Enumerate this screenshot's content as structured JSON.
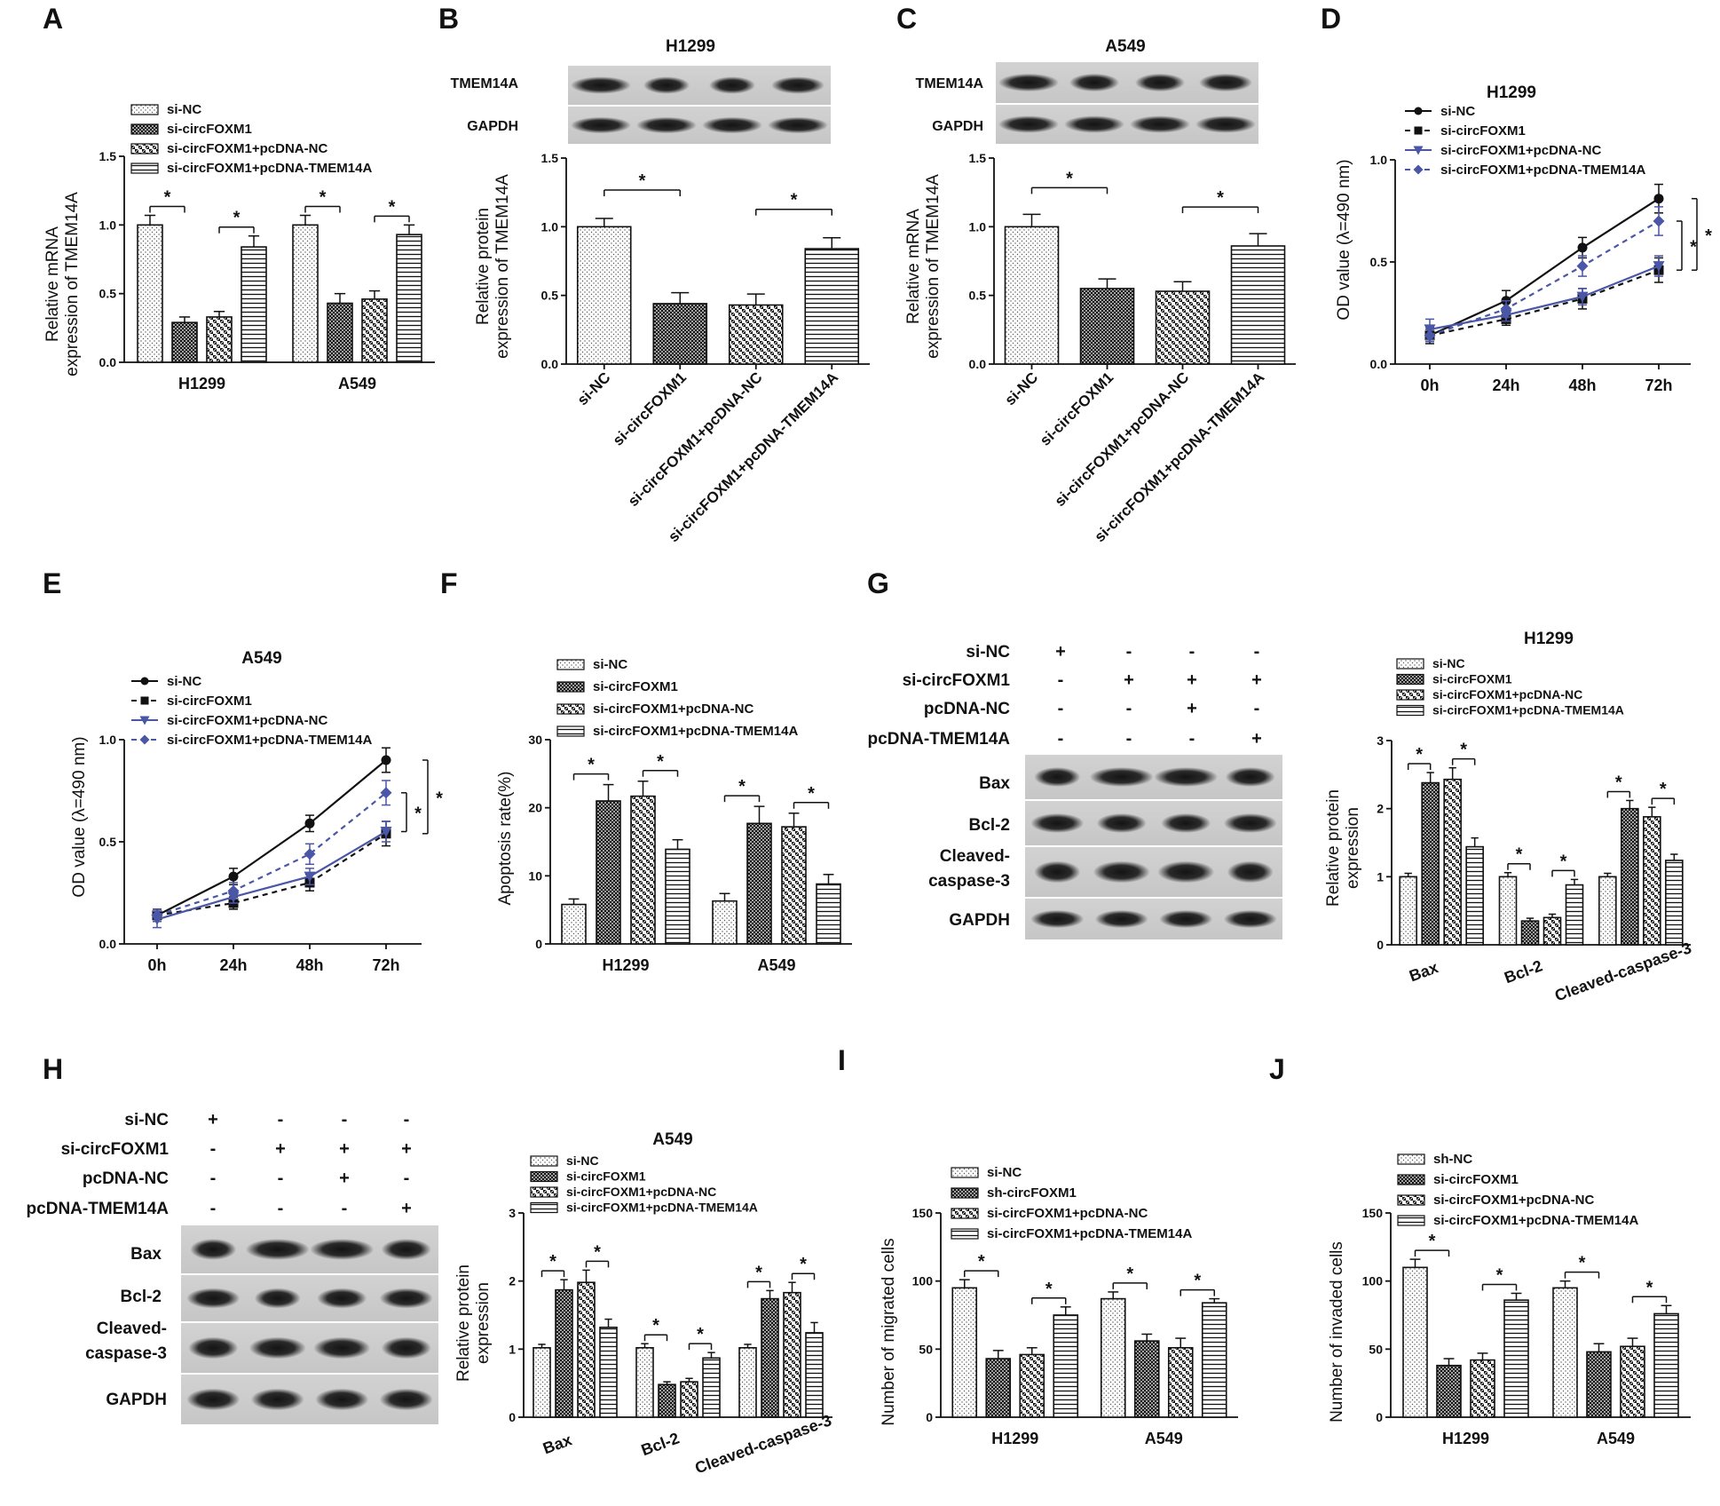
{
  "panels": {
    "A": {
      "letter": "A",
      "ylabel": [
        "Relative mRNA",
        "expression of TMEM14A"
      ],
      "legend": [
        "si-NC",
        "si-circFOXM1",
        "si-circFOXM1+pcDNA-NC",
        "si-circFOXM1+pcDNA-TMEM14A"
      ],
      "yticks": [
        "0.0",
        "0.5",
        "1.0",
        "1.5"
      ]
    },
    "B": {
      "letter": "B",
      "title": "H1299",
      "blot_labels": [
        "TMEM14A",
        "GAPDH"
      ],
      "ylabel": [
        "Relative protein",
        "expression of TMEM14A"
      ],
      "yticks": [
        "0.0",
        "0.5",
        "1.0",
        "1.5"
      ]
    },
    "C": {
      "letter": "C",
      "title": "A549",
      "blot_labels": [
        "TMEM14A",
        "GAPDH"
      ],
      "ylabel": [
        "Relative mRNA",
        "expression of TMEM14A"
      ],
      "yticks": [
        "0.0",
        "0.5",
        "1.0",
        "1.5"
      ]
    },
    "D": {
      "letter": "D",
      "title": "H1299",
      "ylabel": "OD value (λ=490 nm)",
      "legend": [
        "si-NC",
        "si-circFOXM1",
        "si-circFOXM1+pcDNA-NC",
        "si-circFOXM1+pcDNA-TMEM14A"
      ],
      "yticks": [
        "0.0",
        "0.5",
        "1.0"
      ]
    },
    "E": {
      "letter": "E",
      "title": "A549",
      "ylabel": "OD value (λ=490 nm)",
      "legend": [
        "si-NC",
        "si-circFOXM1",
        "si-circFOXM1+pcDNA-NC",
        "si-circFOXM1+pcDNA-TMEM14A"
      ],
      "yticks": [
        "0.0",
        "0.5",
        "1.0"
      ]
    },
    "F": {
      "letter": "F",
      "ylabel": "Apoptosis rate(%)",
      "legend": [
        "si-NC",
        "si-circFOXM1",
        "si-circFOXM1+pcDNA-NC",
        "si-circFOXM1+pcDNA-TMEM14A"
      ],
      "yticks": [
        "0",
        "10",
        "20",
        "30"
      ]
    },
    "G": {
      "letter": "G",
      "title": "H1299",
      "conditions": [
        "si-NC",
        "si-circFOXM1",
        "pcDNA-NC",
        "pcDNA-TMEM14A"
      ],
      "signs": [
        [
          "+",
          "-",
          "-",
          "-"
        ],
        [
          "-",
          "+",
          "+",
          "+"
        ],
        [
          "-",
          "-",
          "+",
          "-"
        ],
        [
          "-",
          "-",
          "-",
          "+"
        ]
      ],
      "blot_labels": [
        "Bax",
        "Bcl-2",
        "Cleaved-",
        "caspase-3",
        "GAPDH"
      ],
      "ylabel": [
        "Relative protein",
        "expression"
      ],
      "legend": [
        "si-NC",
        "si-circFOXM1",
        "si-circFOXM1+pcDNA-NC",
        "si-circFOXM1+pcDNA-TMEM14A"
      ],
      "yticks": [
        "0",
        "1",
        "2",
        "3"
      ]
    },
    "H": {
      "letter": "H",
      "title": "A549",
      "conditions": [
        "si-NC",
        "si-circFOXM1",
        "pcDNA-NC",
        "pcDNA-TMEM14A"
      ],
      "signs": [
        [
          "+",
          "-",
          "-",
          "-"
        ],
        [
          "-",
          "+",
          "+",
          "+"
        ],
        [
          "-",
          "-",
          "+",
          "-"
        ],
        [
          "-",
          "-",
          "-",
          "+"
        ]
      ],
      "blot_labels": [
        "Bax",
        "Bcl-2",
        "Cleaved-",
        "caspase-3",
        "GAPDH"
      ],
      "ylabel": [
        "Relative protein",
        "expression"
      ],
      "legend": [
        "si-NC",
        "si-circFOXM1",
        "si-circFOXM1+pcDNA-NC",
        "si-circFOXM1+pcDNA-TMEM14A"
      ],
      "yticks": [
        "0",
        "1",
        "2",
        "3"
      ]
    },
    "I": {
      "letter": "I",
      "ylabel": "Number of migrated cells",
      "legend": [
        "si-NC",
        "sh-circFOXM1",
        "si-circFOXM1+pcDNA-NC",
        "si-circFOXM1+pcDNA-TMEM14A"
      ],
      "yticks": [
        "0",
        "50",
        "100",
        "150"
      ]
    },
    "J": {
      "letter": "J",
      "ylabel": "Number of invaded cells",
      "legend": [
        "sh-NC",
        "si-circFOXM1",
        "si-circFOXM1+pcDNA-NC",
        "si-circFOXM1+pcDNA-TMEM14A"
      ],
      "yticks": [
        "0",
        "50",
        "100",
        "150"
      ]
    }
  },
  "star": "*",
  "chart_data": [
    {
      "id": "A",
      "type": "bar",
      "categories": [
        "H1299",
        "A549"
      ],
      "ylim": [
        0,
        1.5
      ],
      "series": [
        {
          "name": "si-NC",
          "values": [
            1.0,
            1.0
          ],
          "errors": [
            0.07,
            0.07
          ]
        },
        {
          "name": "si-circFOXM1",
          "values": [
            0.29,
            0.43
          ],
          "errors": [
            0.04,
            0.07
          ]
        },
        {
          "name": "si-circFOXM1+pcDNA-NC",
          "values": [
            0.33,
            0.46
          ],
          "errors": [
            0.04,
            0.06
          ]
        },
        {
          "name": "si-circFOXM1+pcDNA-TMEM14A",
          "values": [
            0.84,
            0.93
          ],
          "errors": [
            0.08,
            0.07
          ]
        }
      ],
      "significance": [
        [
          0,
          0,
          1
        ],
        [
          0,
          2,
          3
        ],
        [
          1,
          0,
          1
        ],
        [
          1,
          2,
          3
        ]
      ]
    },
    {
      "id": "B",
      "type": "bar",
      "categories": [
        "si-NC",
        "si-circFOXM1",
        "si-circFOXM1+pcDNA-NC",
        "si-circFOXM1+pcDNA-TMEM14A"
      ],
      "ylim": [
        0,
        1.5
      ],
      "values": [
        1.0,
        0.44,
        0.43,
        0.84
      ],
      "errors": [
        0.06,
        0.08,
        0.08,
        0.08
      ],
      "significance": [
        [
          0,
          1
        ],
        [
          2,
          3
        ]
      ]
    },
    {
      "id": "C",
      "type": "bar",
      "categories": [
        "si-NC",
        "si-circFOXM1",
        "si-circFOXM1+pcDNA-NC",
        "si-circFOXM1+pcDNA-TMEM14A"
      ],
      "ylim": [
        0,
        1.5
      ],
      "values": [
        1.0,
        0.55,
        0.53,
        0.86
      ],
      "errors": [
        0.09,
        0.07,
        0.07,
        0.09
      ],
      "significance": [
        [
          0,
          1
        ],
        [
          2,
          3
        ]
      ]
    },
    {
      "id": "D",
      "type": "line",
      "x": [
        "0h",
        "24h",
        "48h",
        "72h"
      ],
      "ylim": [
        0,
        1.0
      ],
      "series": [
        {
          "name": "si-NC",
          "values": [
            0.14,
            0.31,
            0.57,
            0.81
          ],
          "errors": [
            0.03,
            0.05,
            0.05,
            0.07
          ]
        },
        {
          "name": "si-circFOXM1",
          "values": [
            0.14,
            0.22,
            0.32,
            0.46
          ],
          "errors": [
            0.04,
            0.03,
            0.05,
            0.06
          ]
        },
        {
          "name": "si-circFOXM1+pcDNA-NC",
          "values": [
            0.17,
            0.24,
            0.33,
            0.48
          ],
          "errors": [
            0.05,
            0.03,
            0.04,
            0.05
          ]
        },
        {
          "name": "si-circFOXM1+pcDNA-TMEM14A",
          "values": [
            0.14,
            0.27,
            0.48,
            0.7
          ],
          "errors": [
            0.03,
            0.04,
            0.05,
            0.07
          ]
        }
      ]
    },
    {
      "id": "E",
      "type": "line",
      "x": [
        "0h",
        "24h",
        "48h",
        "72h"
      ],
      "ylim": [
        0,
        1.0
      ],
      "series": [
        {
          "name": "si-NC",
          "values": [
            0.14,
            0.33,
            0.59,
            0.9
          ],
          "errors": [
            0.03,
            0.04,
            0.04,
            0.06
          ]
        },
        {
          "name": "si-circFOXM1",
          "values": [
            0.14,
            0.2,
            0.3,
            0.54
          ],
          "errors": [
            0.03,
            0.03,
            0.04,
            0.06
          ]
        },
        {
          "name": "si-circFOXM1+pcDNA-NC",
          "values": [
            0.12,
            0.23,
            0.33,
            0.55
          ],
          "errors": [
            0.04,
            0.03,
            0.04,
            0.05
          ]
        },
        {
          "name": "si-circFOXM1+pcDNA-TMEM14A",
          "values": [
            0.14,
            0.26,
            0.44,
            0.74
          ],
          "errors": [
            0.03,
            0.04,
            0.05,
            0.06
          ]
        }
      ]
    },
    {
      "id": "F",
      "type": "bar",
      "categories": [
        "H1299",
        "A549"
      ],
      "ylim": [
        0,
        30
      ],
      "series": [
        {
          "name": "si-NC",
          "values": [
            5.8,
            6.3
          ],
          "errors": [
            0.8,
            1.1
          ]
        },
        {
          "name": "si-circFOXM1",
          "values": [
            21.0,
            17.7
          ],
          "errors": [
            2.4,
            2.5
          ]
        },
        {
          "name": "si-circFOXM1+pcDNA-NC",
          "values": [
            21.7,
            17.2
          ],
          "errors": [
            2.2,
            2.0
          ]
        },
        {
          "name": "si-circFOXM1+pcDNA-TMEM14A",
          "values": [
            13.9,
            8.8
          ],
          "errors": [
            1.4,
            1.4
          ]
        }
      ],
      "significance": [
        [
          0,
          0,
          1
        ],
        [
          0,
          2,
          3
        ],
        [
          1,
          0,
          1
        ],
        [
          1,
          2,
          3
        ]
      ]
    },
    {
      "id": "G",
      "type": "bar",
      "categories": [
        "Bax",
        "Bcl-2",
        "Cleaved-caspase-3"
      ],
      "ylim": [
        0,
        3
      ],
      "series": [
        {
          "name": "si-NC",
          "values": [
            1.0,
            1.0,
            1.0
          ],
          "errors": [
            0.05,
            0.06,
            0.05
          ]
        },
        {
          "name": "si-circFOXM1",
          "values": [
            2.38,
            0.35,
            2.0
          ],
          "errors": [
            0.15,
            0.04,
            0.12
          ]
        },
        {
          "name": "si-circFOXM1+pcDNA-NC",
          "values": [
            2.43,
            0.4,
            1.88
          ],
          "errors": [
            0.17,
            0.05,
            0.14
          ]
        },
        {
          "name": "si-circFOXM1+pcDNA-TMEM14A",
          "values": [
            1.44,
            0.88,
            1.24
          ],
          "errors": [
            0.13,
            0.08,
            0.09
          ]
        }
      ],
      "significance": [
        [
          0,
          0,
          1
        ],
        [
          0,
          2,
          3
        ],
        [
          1,
          0,
          1
        ],
        [
          1,
          2,
          3
        ],
        [
          2,
          0,
          1
        ],
        [
          2,
          2,
          3
        ]
      ]
    },
    {
      "id": "H",
      "type": "bar",
      "categories": [
        "Bax",
        "Bcl-2",
        "Cleaved-caspase-3"
      ],
      "ylim": [
        0,
        3
      ],
      "series": [
        {
          "name": "si-NC",
          "values": [
            1.02,
            1.02,
            1.02
          ],
          "errors": [
            0.05,
            0.06,
            0.05
          ]
        },
        {
          "name": "si-circFOXM1",
          "values": [
            1.87,
            0.48,
            1.74
          ],
          "errors": [
            0.15,
            0.04,
            0.12
          ]
        },
        {
          "name": "si-circFOXM1+pcDNA-NC",
          "values": [
            1.98,
            0.52,
            1.83
          ],
          "errors": [
            0.18,
            0.05,
            0.15
          ]
        },
        {
          "name": "si-circFOXM1+pcDNA-TMEM14A",
          "values": [
            1.32,
            0.87,
            1.24
          ],
          "errors": [
            0.12,
            0.08,
            0.15
          ]
        }
      ],
      "significance": [
        [
          0,
          0,
          1
        ],
        [
          0,
          2,
          3
        ],
        [
          1,
          0,
          1
        ],
        [
          1,
          2,
          3
        ],
        [
          2,
          0,
          1
        ],
        [
          2,
          2,
          3
        ]
      ]
    },
    {
      "id": "I",
      "type": "bar",
      "categories": [
        "H1299",
        "A549"
      ],
      "ylim": [
        0,
        150
      ],
      "series": [
        {
          "name": "si-NC",
          "values": [
            95,
            87
          ],
          "errors": [
            6,
            5
          ]
        },
        {
          "name": "sh-circFOXM1",
          "values": [
            43,
            56
          ],
          "errors": [
            6,
            5
          ]
        },
        {
          "name": "si-circFOXM1+pcDNA-NC",
          "values": [
            46,
            51
          ],
          "errors": [
            5,
            7
          ]
        },
        {
          "name": "si-circFOXM1+pcDNA-TMEM14A",
          "values": [
            75,
            84
          ],
          "errors": [
            6,
            3
          ]
        }
      ],
      "significance": [
        [
          0,
          0,
          1
        ],
        [
          0,
          2,
          3
        ],
        [
          1,
          0,
          1
        ],
        [
          1,
          2,
          3
        ]
      ]
    },
    {
      "id": "J",
      "type": "bar",
      "categories": [
        "H1299",
        "A549"
      ],
      "ylim": [
        0,
        150
      ],
      "series": [
        {
          "name": "sh-NC",
          "values": [
            110,
            95
          ],
          "errors": [
            6,
            5
          ]
        },
        {
          "name": "si-circFOXM1",
          "values": [
            38,
            48
          ],
          "errors": [
            5,
            6
          ]
        },
        {
          "name": "si-circFOXM1+pcDNA-NC",
          "values": [
            42,
            52
          ],
          "errors": [
            5,
            6
          ]
        },
        {
          "name": "si-circFOXM1+pcDNA-TMEM14A",
          "values": [
            86,
            76
          ],
          "errors": [
            5,
            6
          ]
        }
      ],
      "significance": [
        [
          0,
          0,
          1
        ],
        [
          0,
          2,
          3
        ],
        [
          1,
          0,
          1
        ],
        [
          1,
          2,
          3
        ]
      ]
    }
  ]
}
